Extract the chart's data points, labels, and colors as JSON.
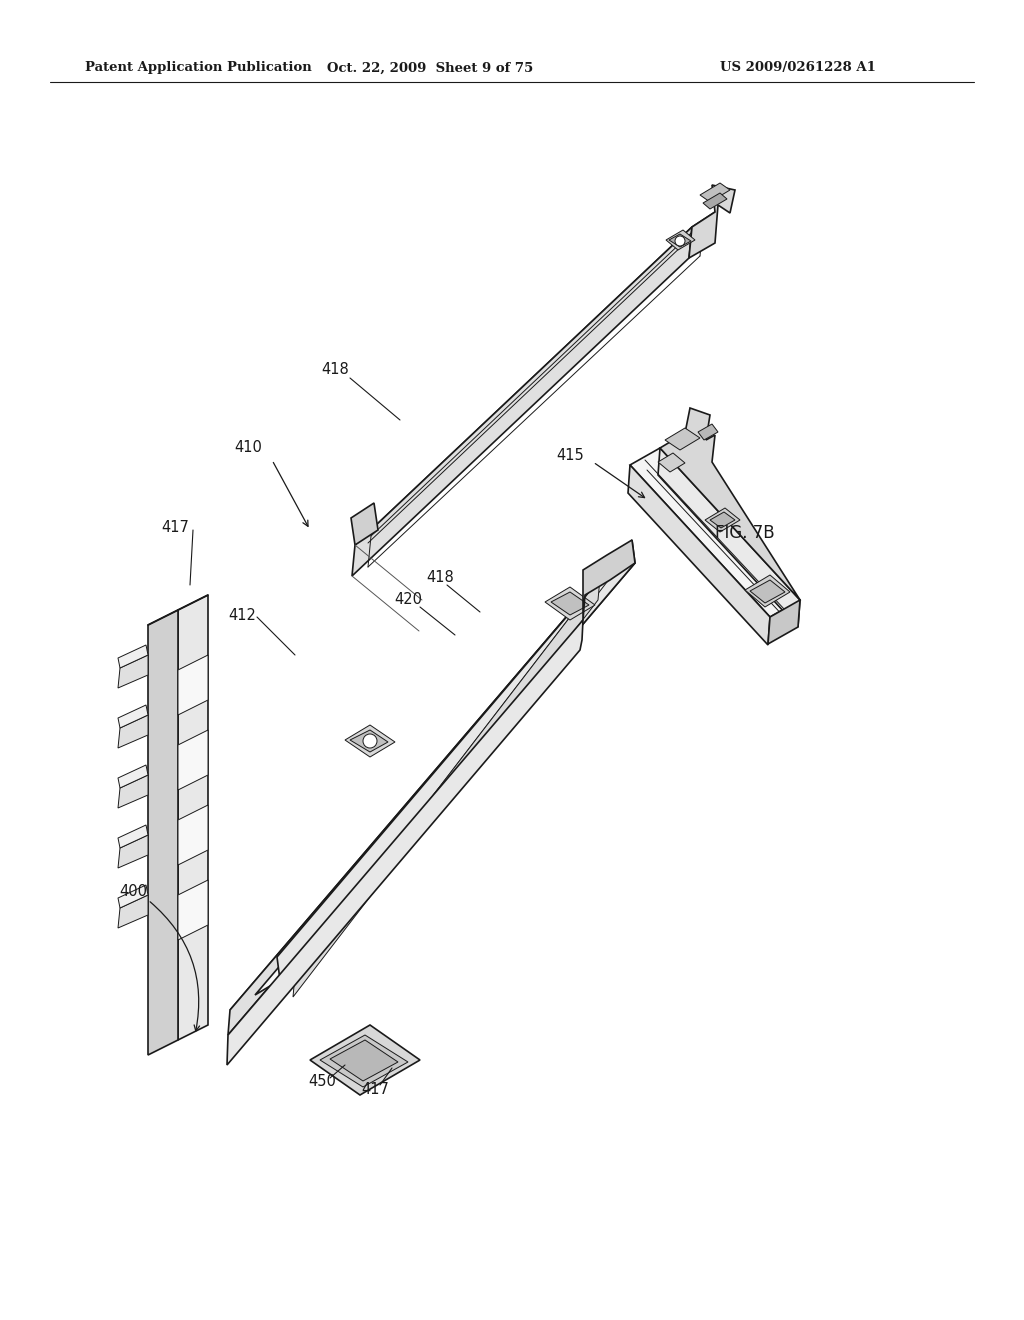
{
  "bg_color": "#ffffff",
  "header_left": "Patent Application Publication",
  "header_center": "Oct. 22, 2009  Sheet 9 of 75",
  "header_right": "US 2009/0261228 A1",
  "fig_label": "FIG. 7B",
  "line_color": "#1a1a1a",
  "fill_white": "#ffffff",
  "fill_light": "#e8e8e8",
  "fill_mid": "#c8c8c8",
  "fill_dark": "#a0a0a0"
}
